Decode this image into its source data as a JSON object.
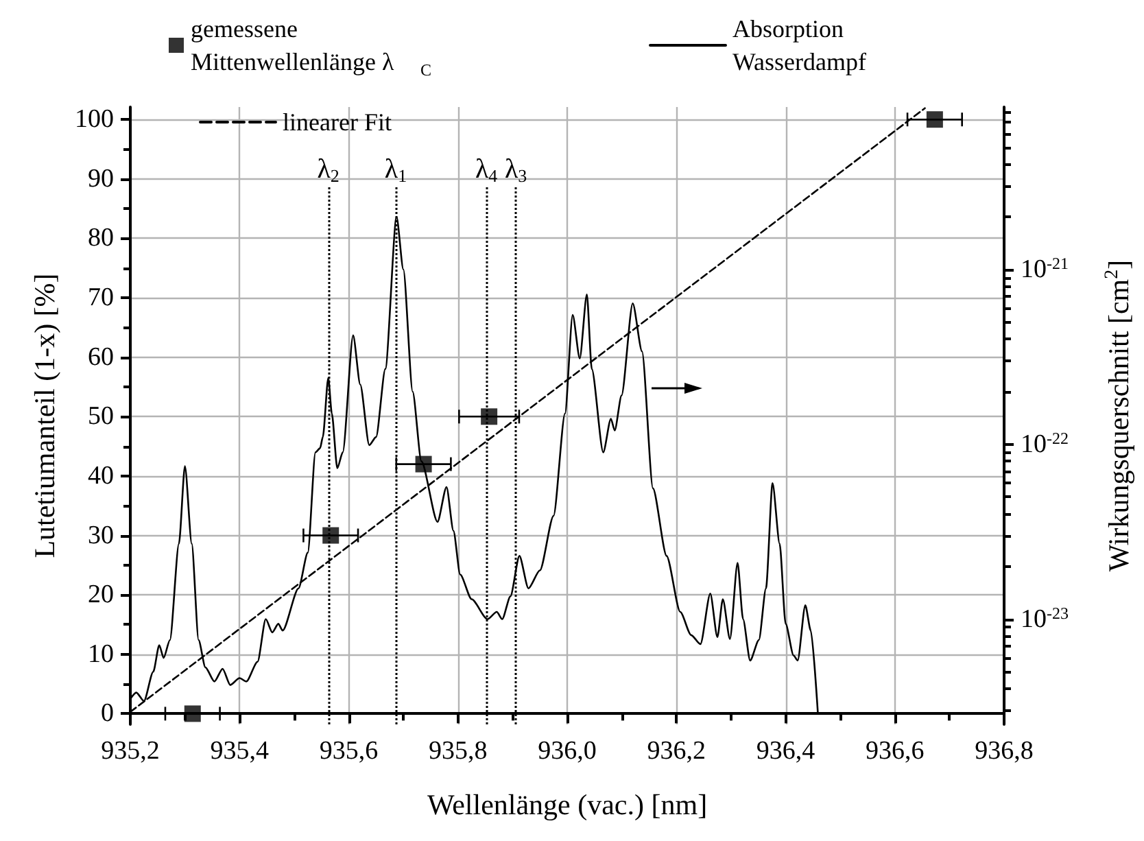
{
  "chart_data": {
    "type": "scatter",
    "xlabel": "Wellenlänge (vac.) [nm]",
    "ylabel": "Lutetiumanteil (1-x) [%]",
    "y2label": "Wirkungsquerschnitt [cm$^{2}$]",
    "xlim": [
      935.2,
      936.8
    ],
    "xticks": [
      {
        "value": 935.2,
        "label": "935,2"
      },
      {
        "value": 935.3,
        "label": null
      },
      {
        "value": 935.4,
        "label": "935,4"
      },
      {
        "value": 935.5,
        "label": null
      },
      {
        "value": 935.6,
        "label": "935,6"
      },
      {
        "value": 935.7,
        "label": null
      },
      {
        "value": 935.8,
        "label": "935,8"
      },
      {
        "value": 935.9,
        "label": null
      },
      {
        "value": 936.0,
        "label": "936,0"
      },
      {
        "value": 936.1,
        "label": null
      },
      {
        "value": 936.2,
        "label": "936,2"
      },
      {
        "value": 936.3,
        "label": null
      },
      {
        "value": 936.4,
        "label": "936,4"
      },
      {
        "value": 936.5,
        "label": null
      },
      {
        "value": 936.6,
        "label": "936,6"
      },
      {
        "value": 936.7,
        "label": null
      },
      {
        "value": 936.8,
        "label": "936,8"
      }
    ],
    "ylim": [
      -1.8,
      102.1
    ],
    "yticks": [
      0,
      {
        "value": 5,
        "label": null
      },
      10,
      {
        "value": 15,
        "label": null
      },
      20,
      {
        "value": 25,
        "label": null
      },
      30,
      {
        "value": 35,
        "label": null
      },
      40,
      {
        "value": 45,
        "label": null
      },
      50,
      {
        "value": 55,
        "label": null
      },
      60,
      {
        "value": 65,
        "label": null
      },
      70,
      {
        "value": 75,
        "label": null
      },
      80,
      {
        "value": 85,
        "label": null
      },
      90,
      {
        "value": 95,
        "label": null
      },
      100
    ],
    "y2lim": [
      2.5e-24,
      8.5e-21
    ],
    "y2ticks": [
      {
        "value": 3e-24,
        "label": null
      },
      {
        "value": 4e-24,
        "label": null
      },
      {
        "value": 5e-24,
        "label": null
      },
      {
        "value": 6e-24,
        "label": null
      },
      {
        "value": 7e-24,
        "label": null
      },
      {
        "value": 8e-24,
        "label": null
      },
      {
        "value": 9e-24,
        "label": null
      },
      {
        "value": 1e-23,
        "label": "10$^{-23}$"
      },
      {
        "value": 2e-23,
        "label": null
      },
      {
        "value": 3e-23,
        "label": null
      },
      {
        "value": 4e-23,
        "label": null
      },
      {
        "value": 5e-23,
        "label": null
      },
      {
        "value": 6e-23,
        "label": null
      },
      {
        "value": 7e-23,
        "label": null
      },
      {
        "value": 8e-23,
        "label": null
      },
      {
        "value": 9e-23,
        "label": null
      },
      {
        "value": 1e-22,
        "label": "10$^{-22}$"
      },
      {
        "value": 2e-22,
        "label": null
      },
      {
        "value": 3e-22,
        "label": null
      },
      {
        "value": 4e-22,
        "label": null
      },
      {
        "value": 5e-22,
        "label": null
      },
      {
        "value": 6e-22,
        "label": null
      },
      {
        "value": 7e-22,
        "label": null
      },
      {
        "value": 8e-22,
        "label": null
      },
      {
        "value": 9e-22,
        "label": null
      },
      {
        "value": 1e-21,
        "label": "10$^{-21}$"
      },
      {
        "value": 2e-21,
        "label": null
      },
      {
        "value": 3e-21,
        "label": null
      },
      {
        "value": 4e-21,
        "label": null
      },
      {
        "value": 5e-21,
        "label": null
      },
      {
        "value": 6e-21,
        "label": null
      },
      {
        "value": 7e-21,
        "label": null
      },
      {
        "value": 8e-21,
        "label": null
      }
    ],
    "log": "y2",
    "grid": true,
    "legend": "top",
    "series": [
      {
        "name": "gemessene Mittenwellenlänge λ$_{C}$",
        "type": "scatter",
        "color": "#000000",
        "marker": "square",
        "x": [
          935.314,
          935.567,
          935.737,
          935.857,
          936.673
        ],
        "values": [
          0,
          30,
          42,
          50,
          100
        ],
        "xerrors": [
          0.05,
          0.05,
          0.05,
          0.055,
          0.05
        ]
      },
      {
        "name": "Absorption Wasserdampf",
        "type": "line",
        "axis": "y2",
        "color": "#000000",
        "marker": "none",
        "line_style": "solid",
        "x": [
          935.2,
          935.211,
          935.225,
          935.242,
          935.253,
          935.261,
          935.2725,
          935.289,
          935.3,
          935.3125,
          935.325,
          935.3375,
          935.354,
          935.369,
          935.383,
          935.4,
          935.4125,
          935.433,
          935.448,
          935.46,
          935.471,
          935.479,
          935.508,
          935.525,
          935.539,
          935.5475,
          935.5525,
          935.5625,
          935.569,
          935.579,
          935.589,
          935.608,
          935.621,
          935.6375,
          935.65,
          935.667,
          935.6875,
          935.7,
          935.717,
          935.733,
          935.7625,
          935.779,
          935.7917,
          935.804,
          935.825,
          935.854,
          935.871,
          935.881,
          935.896,
          935.9125,
          935.929,
          935.95,
          935.975,
          935.996,
          936.01,
          936.023,
          936.036,
          936.045,
          936.066,
          936.08,
          936.087,
          936.0995,
          936.12,
          936.137,
          936.157,
          936.182,
          936.207,
          936.227,
          936.244,
          936.262,
          936.275,
          936.285,
          936.298,
          936.312,
          936.322,
          936.335,
          936.351,
          936.364,
          936.376,
          936.389,
          936.4,
          936.4145,
          936.422,
          936.436,
          936.446,
          936.459
        ],
        "values": [
          3.5e-24,
          3.8e-24,
          3.4e-24,
          5e-24,
          7.1e-24,
          6e-24,
          7.6e-24,
          2.7e-23,
          7.5e-23,
          2.7e-23,
          7.6e-24,
          5.3e-24,
          4.4e-24,
          5.2e-24,
          4.2e-24,
          4.6e-24,
          4.4e-24,
          5.7e-24,
          1e-23,
          8.4e-24,
          9.4e-24,
          8.6e-24,
          1.5e-23,
          2.4e-23,
          9e-23,
          9.5e-23,
          1.1e-22,
          2.4e-22,
          1.5e-22,
          7.3e-23,
          9e-23,
          4.2e-22,
          2.2e-22,
          9.9e-23,
          1.1e-22,
          2.7e-22,
          2e-21,
          1e-21,
          2e-22,
          8e-23,
          3.6e-23,
          5.7e-23,
          3.2e-23,
          1.8e-23,
          1.3e-23,
          1e-23,
          1.1e-23,
          1e-23,
          1.35e-23,
          2.3e-23,
          1.5e-23,
          1.9e-23,
          3.9e-23,
          1.5e-22,
          5.5e-22,
          3.1e-22,
          7.2e-22,
          2.7e-22,
          9e-23,
          1.4e-22,
          1.2e-22,
          1.9e-22,
          6.4e-22,
          3.4e-22,
          5.6e-23,
          2.3e-23,
          1.1e-23,
          8.1e-24,
          7.2e-24,
          1.4e-23,
          7.9e-24,
          1.3e-23,
          7.7e-24,
          2.1e-23,
          1e-23,
          5.8e-24,
          7.6e-24,
          1.5e-23,
          6e-23,
          2.7e-23,
          9.4e-24,
          6.2e-24,
          5.8e-24,
          1.2e-23,
          8.6e-24,
          2.9e-24
        ]
      },
      {
        "name": "linearer Fit",
        "type": "line",
        "color": "#000000",
        "marker": "none",
        "line_style": "dashed",
        "x": [
          935.2,
          936.655
        ],
        "values": [
          0.3,
          101.9
        ]
      }
    ],
    "ref_lines": [
      {
        "axis": "x",
        "value": 935.5625,
        "label": "λ$_{2}$",
        "color": "#000000",
        "line_style": "dotted"
      },
      {
        "axis": "x",
        "value": 935.686,
        "label": "λ$_{1}$",
        "color": "#000000",
        "line_style": "dotted"
      },
      {
        "axis": "x",
        "value": 935.852,
        "label": "λ$_{4}$",
        "color": "#000000",
        "line_style": "dotted"
      },
      {
        "axis": "x",
        "value": 935.906,
        "label": "λ$_{3}$",
        "color": "#000000",
        "line_style": "dotted"
      }
    ]
  }
}
